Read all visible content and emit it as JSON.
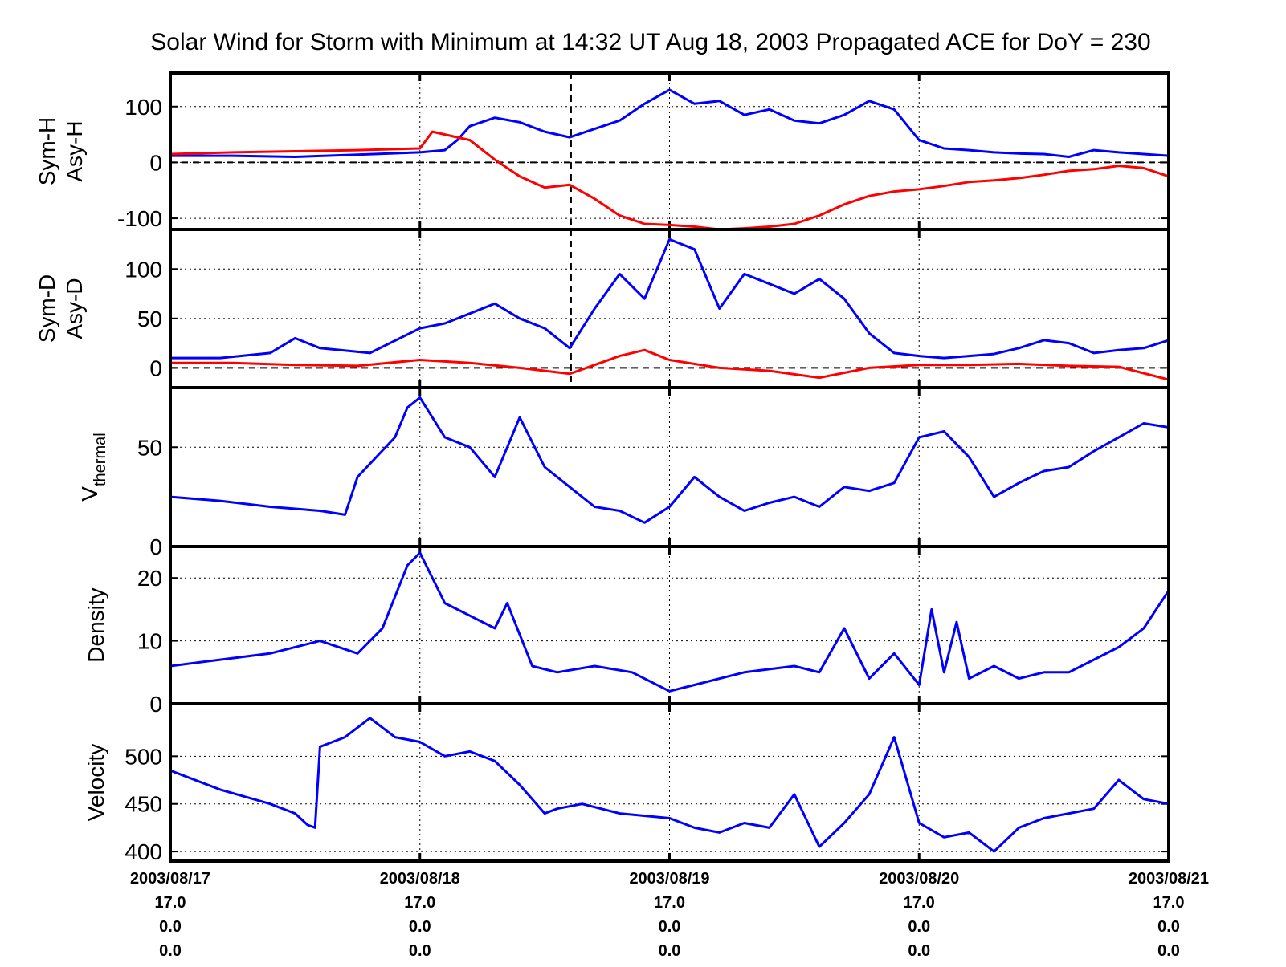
{
  "chart_data": {
    "type": "line",
    "title": "Solar Wind for Storm with Minimum at 14:32 UT Aug 18, 2003  Propagated ACE for DoY = 230",
    "x_start": "2003/08/17",
    "x_end": "2003/08/21",
    "storm_minimum": "2003/08/18 14:32",
    "x_tick_labels": [
      {
        "line1": "2003/08/17",
        "line2": "17.0",
        "line3": "0.0",
        "line4": "0.0"
      },
      {
        "line1": "2003/08/18",
        "line2": "17.0",
        "line3": "0.0",
        "line4": "0.0"
      },
      {
        "line1": "2003/08/19",
        "line2": "17.0",
        "line3": "0.0",
        "line4": "0.0"
      },
      {
        "line1": "2003/08/20",
        "line2": "17.0",
        "line3": "0.0",
        "line4": "0.0"
      },
      {
        "line1": "2003/08/21",
        "line2": "17.0",
        "line3": "0.0",
        "line4": "0.0"
      }
    ],
    "grid": true,
    "panels": [
      {
        "ylabel_lines": [
          "Sym-H",
          "Asy-H"
        ],
        "ylim": [
          -120,
          160
        ],
        "yticks": [
          -100,
          0,
          100
        ],
        "zero_line": true,
        "storm_marker": true,
        "series": [
          {
            "color": "#0000ff",
            "x": [
              0,
              0.25,
              0.5,
              0.75,
              1,
              1.1,
              1.15,
              1.2,
              1.3,
              1.4,
              1.5,
              1.6,
              1.7,
              1.8,
              1.9,
              2.0,
              2.1,
              2.2,
              2.3,
              2.4,
              2.5,
              2.6,
              2.7,
              2.8,
              2.9,
              3.0,
              3.1,
              3.2,
              3.3,
              3.4,
              3.5,
              3.6,
              3.7,
              3.8,
              3.9,
              4.0
            ],
            "y": [
              12,
              12,
              10,
              14,
              18,
              22,
              40,
              65,
              80,
              72,
              55,
              45,
              60,
              75,
              105,
              130,
              105,
              110,
              85,
              95,
              75,
              70,
              85,
              110,
              95,
              40,
              25,
              22,
              18,
              16,
              15,
              10,
              22,
              18,
              15,
              12
            ]
          },
          {
            "color": "#ff0000",
            "x": [
              0,
              0.25,
              0.5,
              0.75,
              1,
              1.05,
              1.1,
              1.2,
              1.3,
              1.4,
              1.5,
              1.6,
              1.7,
              1.8,
              1.9,
              2.0,
              2.1,
              2.2,
              2.3,
              2.4,
              2.5,
              2.6,
              2.7,
              2.8,
              2.9,
              3.0,
              3.1,
              3.2,
              3.3,
              3.4,
              3.5,
              3.6,
              3.7,
              3.8,
              3.9,
              4.0
            ],
            "y": [
              15,
              18,
              20,
              22,
              25,
              55,
              50,
              40,
              5,
              -25,
              -45,
              -40,
              -65,
              -95,
              -110,
              -112,
              -115,
              -120,
              -118,
              -115,
              -110,
              -95,
              -75,
              -60,
              -52,
              -48,
              -42,
              -35,
              -32,
              -28,
              -22,
              -15,
              -12,
              -6,
              -10,
              -25
            ]
          }
        ]
      },
      {
        "ylabel_lines": [
          "Sym-D",
          "Asy-D"
        ],
        "ylim": [
          -20,
          140
        ],
        "yticks": [
          0,
          50,
          100
        ],
        "zero_line": true,
        "storm_marker": true,
        "series": [
          {
            "color": "#0000ff",
            "x": [
              0,
              0.2,
              0.4,
              0.5,
              0.6,
              0.8,
              1.0,
              1.1,
              1.2,
              1.3,
              1.4,
              1.5,
              1.6,
              1.7,
              1.8,
              1.9,
              2.0,
              2.1,
              2.2,
              2.3,
              2.4,
              2.5,
              2.6,
              2.7,
              2.8,
              2.9,
              3.0,
              3.1,
              3.2,
              3.3,
              3.4,
              3.5,
              3.6,
              3.7,
              3.8,
              3.9,
              4.0
            ],
            "y": [
              10,
              10,
              15,
              30,
              20,
              15,
              40,
              45,
              55,
              65,
              50,
              40,
              20,
              60,
              95,
              70,
              130,
              120,
              60,
              95,
              85,
              75,
              90,
              70,
              35,
              15,
              12,
              10,
              12,
              14,
              20,
              28,
              25,
              15,
              18,
              20,
              28
            ]
          },
          {
            "color": "#ff0000",
            "x": [
              0,
              0.25,
              0.5,
              0.75,
              1,
              1.2,
              1.4,
              1.6,
              1.8,
              1.9,
              2.0,
              2.2,
              2.4,
              2.6,
              2.8,
              3.0,
              3.2,
              3.4,
              3.6,
              3.8,
              4.0
            ],
            "y": [
              5,
              5,
              3,
              2,
              8,
              5,
              0,
              -6,
              12,
              18,
              8,
              0,
              -3,
              -10,
              0,
              3,
              3,
              4,
              2,
              1,
              -12
            ]
          }
        ]
      },
      {
        "ylabel_main": "V",
        "ylabel_sub": "thermal",
        "ylim": [
          0,
          80
        ],
        "yticks": [
          0,
          50
        ],
        "zero_line": false,
        "storm_marker": false,
        "series": [
          {
            "color": "#0000ff",
            "x": [
              0,
              0.2,
              0.4,
              0.6,
              0.7,
              0.75,
              0.9,
              0.95,
              1.0,
              1.1,
              1.2,
              1.3,
              1.4,
              1.5,
              1.6,
              1.7,
              1.8,
              1.9,
              2.0,
              2.1,
              2.2,
              2.3,
              2.4,
              2.5,
              2.6,
              2.7,
              2.8,
              2.9,
              3.0,
              3.1,
              3.2,
              3.3,
              3.4,
              3.5,
              3.6,
              3.7,
              3.8,
              3.9,
              4.0
            ],
            "y": [
              25,
              23,
              20,
              18,
              16,
              35,
              55,
              70,
              75,
              55,
              50,
              35,
              65,
              40,
              30,
              20,
              18,
              12,
              20,
              35,
              25,
              18,
              22,
              25,
              20,
              30,
              28,
              32,
              55,
              58,
              45,
              25,
              32,
              38,
              40,
              48,
              55,
              62,
              60
            ]
          }
        ]
      },
      {
        "ylabel_main": "Density",
        "ylim": [
          0,
          25
        ],
        "yticks": [
          0,
          10,
          20
        ],
        "zero_line": false,
        "storm_marker": false,
        "series": [
          {
            "color": "#0000ff",
            "x": [
              0,
              0.2,
              0.4,
              0.6,
              0.75,
              0.85,
              0.95,
              1.0,
              1.1,
              1.2,
              1.3,
              1.35,
              1.45,
              1.55,
              1.7,
              1.85,
              2.0,
              2.1,
              2.3,
              2.5,
              2.6,
              2.7,
              2.8,
              2.9,
              3.0,
              3.05,
              3.1,
              3.15,
              3.2,
              3.3,
              3.4,
              3.5,
              3.6,
              3.7,
              3.8,
              3.9,
              4.0
            ],
            "y": [
              6,
              7,
              8,
              10,
              8,
              12,
              22,
              24,
              16,
              14,
              12,
              16,
              6,
              5,
              6,
              5,
              2,
              3,
              5,
              6,
              5,
              12,
              4,
              8,
              3,
              15,
              5,
              13,
              4,
              6,
              4,
              5,
              5,
              7,
              9,
              12,
              18
            ]
          }
        ]
      },
      {
        "ylabel_main": "Velocity",
        "ylim": [
          390,
          555
        ],
        "yticks": [
          400,
          450,
          500
        ],
        "zero_line": false,
        "storm_marker": false,
        "series": [
          {
            "color": "#0000ff",
            "x": [
              0,
              0.2,
              0.4,
              0.5,
              0.55,
              0.58,
              0.6,
              0.7,
              0.8,
              0.9,
              1.0,
              1.1,
              1.2,
              1.3,
              1.4,
              1.5,
              1.55,
              1.65,
              1.8,
              2.0,
              2.1,
              2.2,
              2.3,
              2.4,
              2.5,
              2.6,
              2.7,
              2.8,
              2.9,
              3.0,
              3.1,
              3.2,
              3.3,
              3.4,
              3.5,
              3.6,
              3.7,
              3.8,
              3.9,
              4.0
            ],
            "y": [
              485,
              465,
              450,
              440,
              428,
              425,
              510,
              520,
              540,
              520,
              515,
              500,
              505,
              495,
              470,
              440,
              445,
              450,
              440,
              435,
              425,
              420,
              430,
              425,
              460,
              405,
              430,
              460,
              520,
              430,
              415,
              420,
              400,
              425,
              435,
              440,
              445,
              475,
              455,
              450
            ]
          }
        ]
      }
    ]
  }
}
